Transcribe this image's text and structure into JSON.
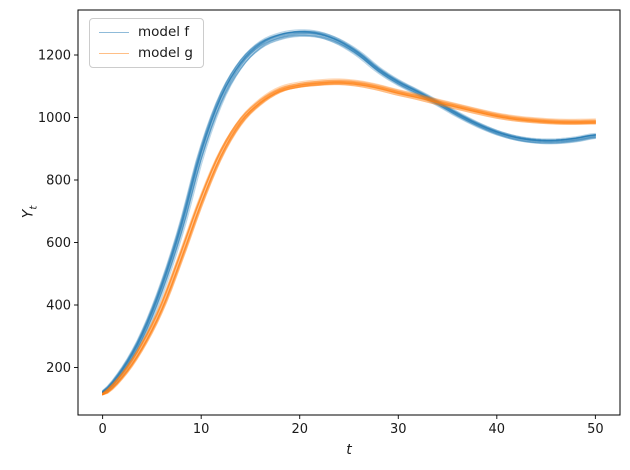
{
  "figure": {
    "background": "#ffffff",
    "spine_color": "#000000",
    "text_color": "#1a1a1a"
  },
  "chart_data": {
    "type": "line",
    "title": "",
    "xlabel": "t",
    "ylabel": "Y_t",
    "ylabel_main": "Y",
    "ylabel_sub": "t",
    "x": [
      0,
      2,
      4,
      6,
      8,
      10,
      12,
      14,
      16,
      18,
      20,
      22,
      24,
      26,
      28,
      30,
      32,
      34,
      36,
      38,
      40,
      42,
      44,
      46,
      48,
      50
    ],
    "series": [
      {
        "name": "model f",
        "color": "#1f77b4",
        "values": [
          120,
          190,
          300,
          455,
          650,
          885,
          1060,
          1170,
          1232,
          1260,
          1270,
          1265,
          1242,
          1203,
          1152,
          1112,
          1080,
          1046,
          1010,
          978,
          952,
          934,
          925,
          924,
          930,
          941
        ]
      },
      {
        "name": "model g",
        "color": "#ff7f0e",
        "values": [
          113,
          172,
          265,
          390,
          555,
          730,
          880,
          985,
          1048,
          1087,
          1103,
          1110,
          1113,
          1108,
          1096,
          1080,
          1066,
          1050,
          1035,
          1020,
          1006,
          996,
          990,
          986,
          985,
          986
        ]
      }
    ],
    "ensemble": {
      "n_trajectories": 18,
      "alpha": 0.3,
      "line_width": 1.25,
      "amp_jitter": 0.013,
      "t_jitter": 0.35
    },
    "xlim": [
      -2.5,
      52.5
    ],
    "ylim": [
      48,
      1344
    ],
    "xticks": [
      0,
      10,
      20,
      30,
      40,
      50
    ],
    "yticks": [
      200,
      400,
      600,
      800,
      1000,
      1200
    ],
    "grid": false,
    "legend": {
      "position": "upper left",
      "sample_alpha": 0.5
    }
  }
}
